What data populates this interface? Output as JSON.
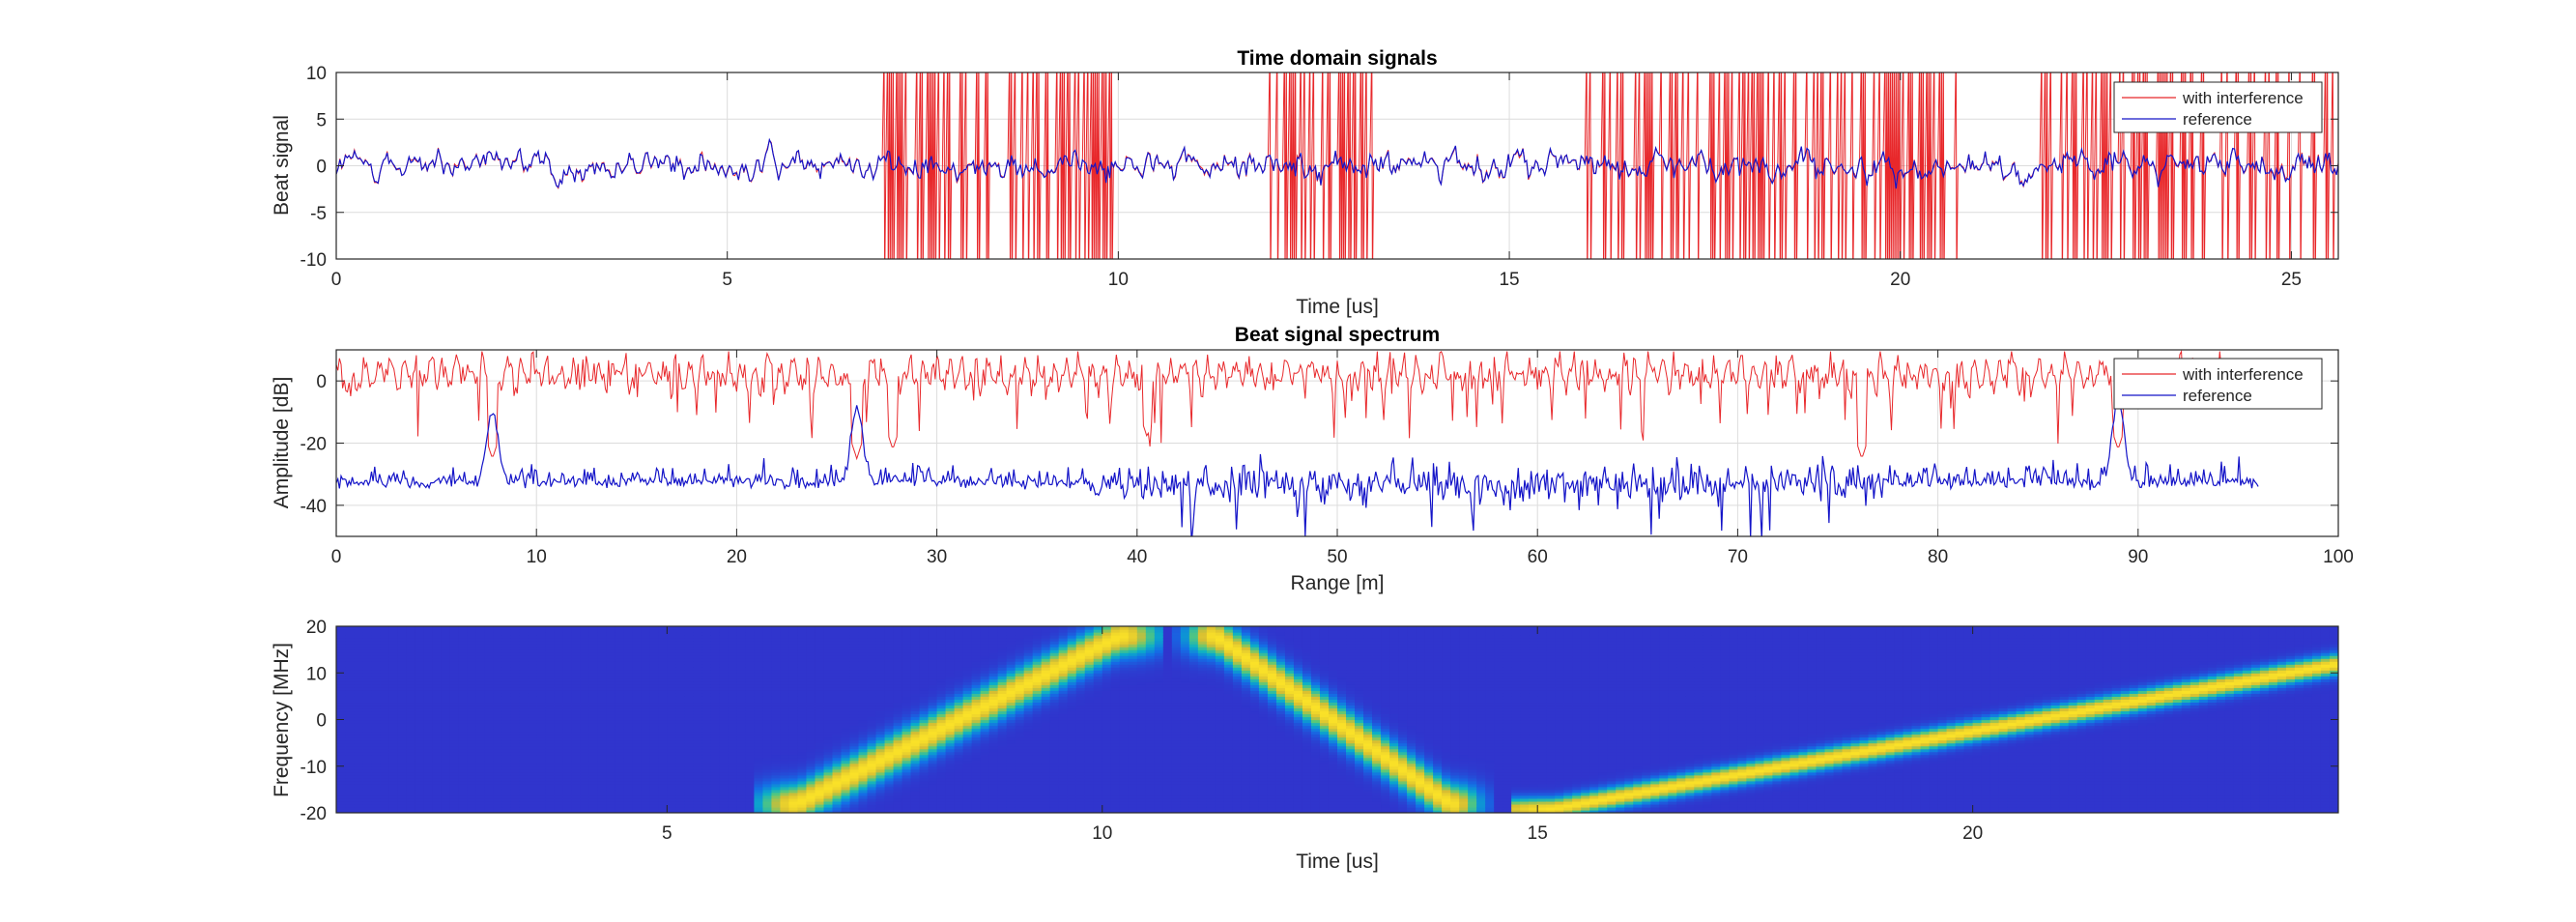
{
  "chart_data": [
    {
      "type": "line",
      "title": "Time domain signals",
      "xlabel": "Time [us]",
      "ylabel": "Beat signal",
      "xlim": [
        0,
        25.6
      ],
      "ylim": [
        -10,
        10
      ],
      "xticks": [
        0,
        5,
        10,
        15,
        20,
        25
      ],
      "yticks": [
        -10,
        -5,
        0,
        5,
        10
      ],
      "xtick_labels": [
        "0",
        "5",
        "10",
        "15",
        "20",
        "25"
      ],
      "ytick_labels": [
        "-10",
        "-5",
        "0",
        "5",
        "10"
      ],
      "grid": true,
      "legend_position": "top-right",
      "series": [
        {
          "name": "with interference",
          "color": "#e8282b",
          "description_values": "noise of amplitude ~2 around 0 with bursts of large interference (beyond +/-10) in the intervals below",
          "interference_intervals_us": [
            [
              7.0,
              9.95
            ],
            [
              11.9,
              13.3
            ],
            [
              15.9,
              20.8
            ],
            [
              21.7,
              25.6
            ]
          ]
        },
        {
          "name": "reference",
          "color": "#1414c8",
          "noise_amplitude": 2
        }
      ]
    },
    {
      "type": "line",
      "title": "Beat signal spectrum",
      "xlabel": "Range [m]",
      "ylabel": "Amplitude [dB]",
      "xlim": [
        0,
        100
      ],
      "ylim": [
        -50,
        10
      ],
      "xticks": [
        0,
        10,
        20,
        30,
        40,
        50,
        60,
        70,
        80,
        90,
        100
      ],
      "yticks": [
        -40,
        -20,
        0
      ],
      "xtick_labels": [
        "0",
        "10",
        "20",
        "30",
        "40",
        "50",
        "60",
        "70",
        "80",
        "90",
        "100"
      ],
      "ytick_labels": [
        "-40",
        "-20",
        "0"
      ],
      "grid": true,
      "legend_position": "top-right",
      "series": [
        {
          "name": "with interference",
          "color": "#e8282b",
          "x_range": [
            0,
            96
          ],
          "mean_db": 2,
          "spread_db": 8,
          "deep_notches": [
            [
              7.8,
              -25
            ],
            [
              26,
              -25
            ],
            [
              76.2,
              -25
            ],
            [
              89,
              -22
            ],
            [
              27.8,
              -22
            ],
            [
              40.5,
              -18
            ]
          ]
        },
        {
          "name": "reference",
          "color": "#1414c8",
          "x_range": [
            0,
            96
          ],
          "mean_db": -33,
          "spread_db": 8,
          "peaks": [
            [
              7.8,
              -10
            ],
            [
              26,
              -9
            ],
            [
              89,
              -6
            ]
          ]
        }
      ]
    },
    {
      "type": "heatmap",
      "title": "",
      "xlabel": "Time [us]",
      "ylabel": "Frequency [MHz]",
      "xlim": [
        1.2,
        24.2
      ],
      "ylim": [
        -20,
        20
      ],
      "xticks": [
        5,
        10,
        15,
        20
      ],
      "yticks": [
        -20,
        -10,
        0,
        10,
        20
      ],
      "xtick_labels": [
        "5",
        "10",
        "15",
        "20"
      ],
      "ytick_labels": [
        "-20",
        "-10",
        "0",
        "10",
        "20"
      ],
      "colormap": "parula",
      "chirps": [
        {
          "name": "interference chirp 1",
          "t": [
            6.5,
            10.2
          ],
          "f": [
            -18,
            18
          ]
        },
        {
          "name": "interference chirp 2",
          "t": [
            11.3,
            14.0
          ],
          "f": [
            18,
            -18
          ]
        },
        {
          "name": "reference chirp",
          "t": [
            15.2,
            24.2
          ],
          "f": [
            -19,
            12
          ]
        }
      ]
    }
  ]
}
